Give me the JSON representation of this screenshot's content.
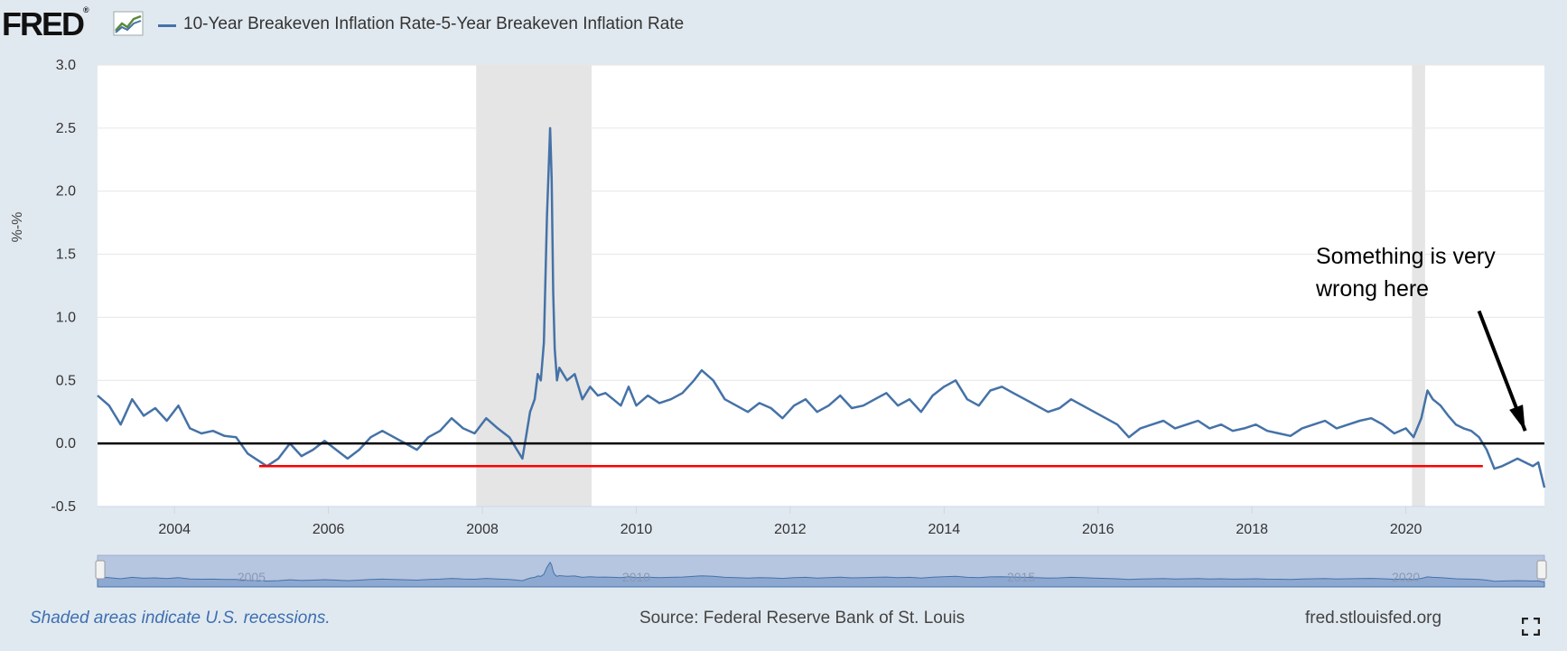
{
  "header": {
    "logo_text": "FRED",
    "logo_mark": "®",
    "logo_icon": "line-graph-icon",
    "series_label": "10-Year Breakeven Inflation Rate-5-Year Breakeven Inflation Rate"
  },
  "footer": {
    "recession_note": "Shaded areas indicate U.S. recessions.",
    "source": "Source: Federal Reserve Bank of St. Louis",
    "site": "fred.stlouisfed.org",
    "fullscreen_icon": "fullscreen-icon"
  },
  "colors": {
    "series": "#4572a7",
    "zero_line": "#000000",
    "red_line": "#ff0000",
    "recession": "#e5e5e5",
    "background": "#e1e9f0"
  },
  "chart_data": {
    "type": "line",
    "title": "",
    "xlabel": "",
    "ylabel": "%-%",
    "xlim": [
      2003.0,
      2021.8
    ],
    "ylim": [
      -0.5,
      3.0
    ],
    "x_ticks": [
      "2004",
      "2006",
      "2008",
      "2010",
      "2012",
      "2014",
      "2016",
      "2018",
      "2020"
    ],
    "y_ticks": [
      "-0.5",
      "0.0",
      "0.5",
      "1.0",
      "1.5",
      "2.0",
      "2.5",
      "3.0"
    ],
    "grid": true,
    "recessions": [
      [
        2007.92,
        2009.42
      ],
      [
        2020.08,
        2020.25
      ]
    ],
    "series": [
      {
        "name": "10-Year Breakeven Inflation Rate-5-Year Breakeven Inflation Rate",
        "x": [
          2003.0,
          2003.15,
          2003.3,
          2003.45,
          2003.6,
          2003.75,
          2003.9,
          2004.05,
          2004.2,
          2004.35,
          2004.5,
          2004.65,
          2004.8,
          2004.95,
          2005.05,
          2005.2,
          2005.35,
          2005.5,
          2005.65,
          2005.8,
          2005.95,
          2006.1,
          2006.25,
          2006.4,
          2006.55,
          2006.7,
          2006.85,
          2007.0,
          2007.15,
          2007.3,
          2007.45,
          2007.6,
          2007.75,
          2007.9,
          2008.05,
          2008.2,
          2008.35,
          2008.45,
          2008.52,
          2008.58,
          2008.62,
          2008.68,
          2008.72,
          2008.76,
          2008.8,
          2008.84,
          2008.88,
          2008.9,
          2008.92,
          2008.94,
          2008.97,
          2009.0,
          2009.1,
          2009.2,
          2009.3,
          2009.4,
          2009.5,
          2009.6,
          2009.7,
          2009.8,
          2009.9,
          2010.0,
          2010.15,
          2010.3,
          2010.45,
          2010.6,
          2010.75,
          2010.85,
          2011.0,
          2011.15,
          2011.3,
          2011.45,
          2011.6,
          2011.75,
          2011.9,
          2012.05,
          2012.2,
          2012.35,
          2012.5,
          2012.65,
          2012.8,
          2012.95,
          2013.1,
          2013.25,
          2013.4,
          2013.55,
          2013.7,
          2013.85,
          2014.0,
          2014.15,
          2014.3,
          2014.45,
          2014.6,
          2014.75,
          2014.9,
          2015.05,
          2015.2,
          2015.35,
          2015.5,
          2015.65,
          2015.8,
          2015.95,
          2016.1,
          2016.25,
          2016.4,
          2016.55,
          2016.7,
          2016.85,
          2017.0,
          2017.15,
          2017.3,
          2017.45,
          2017.6,
          2017.75,
          2017.9,
          2018.05,
          2018.2,
          2018.35,
          2018.5,
          2018.65,
          2018.8,
          2018.95,
          2019.1,
          2019.25,
          2019.4,
          2019.55,
          2019.7,
          2019.85,
          2020.0,
          2020.1,
          2020.2,
          2020.28,
          2020.35,
          2020.45,
          2020.55,
          2020.65,
          2020.75,
          2020.85,
          2020.95,
          2021.05,
          2021.15,
          2021.25,
          2021.35,
          2021.45,
          2021.55,
          2021.65,
          2021.72,
          2021.76,
          2021.8
        ],
        "values": [
          0.38,
          0.3,
          0.15,
          0.35,
          0.22,
          0.28,
          0.18,
          0.3,
          0.12,
          0.08,
          0.1,
          0.06,
          0.05,
          -0.08,
          -0.12,
          -0.18,
          -0.12,
          0.0,
          -0.1,
          -0.05,
          0.02,
          -0.05,
          -0.12,
          -0.05,
          0.05,
          0.1,
          0.05,
          0.0,
          -0.05,
          0.05,
          0.1,
          0.2,
          0.12,
          0.08,
          0.2,
          0.12,
          0.05,
          -0.05,
          -0.12,
          0.1,
          0.25,
          0.35,
          0.55,
          0.5,
          0.8,
          1.8,
          2.5,
          2.1,
          1.2,
          0.75,
          0.5,
          0.6,
          0.5,
          0.55,
          0.35,
          0.45,
          0.38,
          0.4,
          0.35,
          0.3,
          0.45,
          0.3,
          0.38,
          0.32,
          0.35,
          0.4,
          0.5,
          0.58,
          0.5,
          0.35,
          0.3,
          0.25,
          0.32,
          0.28,
          0.2,
          0.3,
          0.35,
          0.25,
          0.3,
          0.38,
          0.28,
          0.3,
          0.35,
          0.4,
          0.3,
          0.35,
          0.25,
          0.38,
          0.45,
          0.5,
          0.35,
          0.3,
          0.42,
          0.45,
          0.4,
          0.35,
          0.3,
          0.25,
          0.28,
          0.35,
          0.3,
          0.25,
          0.2,
          0.15,
          0.05,
          0.12,
          0.15,
          0.18,
          0.12,
          0.15,
          0.18,
          0.12,
          0.15,
          0.1,
          0.12,
          0.15,
          0.1,
          0.08,
          0.06,
          0.12,
          0.15,
          0.18,
          0.12,
          0.15,
          0.18,
          0.2,
          0.15,
          0.08,
          0.12,
          0.05,
          0.2,
          0.42,
          0.35,
          0.3,
          0.22,
          0.15,
          0.12,
          0.1,
          0.05,
          -0.05,
          -0.2,
          -0.18,
          -0.15,
          -0.12,
          -0.15,
          -0.18,
          -0.15,
          -0.25,
          -0.35
        ]
      }
    ],
    "reference_lines": [
      {
        "y": 0.0,
        "x_from": 2003.0,
        "x_to": 2021.8,
        "color": "#000000"
      },
      {
        "y": -0.18,
        "x_from": 2005.1,
        "x_to": 2021.0,
        "color": "#ff0000"
      }
    ],
    "annotation": {
      "text_line1": "Something is very",
      "text_line2": "wrong here",
      "arrow_from": [
        2020.95,
        1.05
      ],
      "arrow_to": [
        2021.55,
        0.1
      ]
    },
    "navigator_ticks": [
      "2005",
      "2010",
      "2015",
      "2020"
    ]
  }
}
